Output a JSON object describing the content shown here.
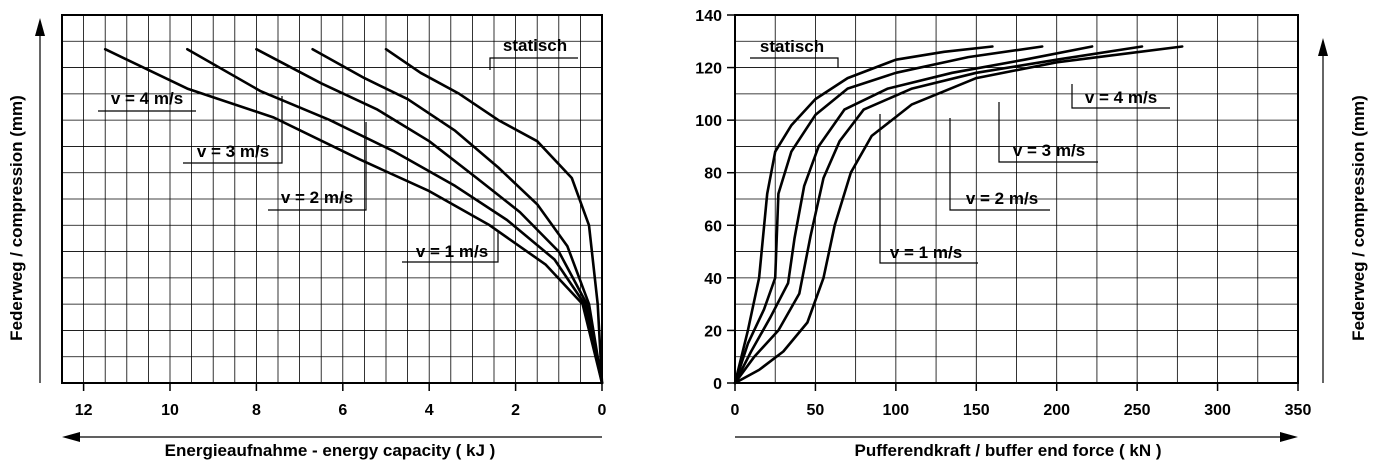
{
  "chart_data": [
    {
      "type": "line",
      "xlabel": "Energieaufnahme - energy capacity ( kJ )",
      "ylabel": "Federweg / compression (mm)",
      "xlim": [
        12.5,
        0
      ],
      "ylim": [
        0,
        140
      ],
      "x_ticks": [
        "12",
        "10",
        "8",
        "6",
        "4",
        "2",
        "0"
      ],
      "grid": true,
      "series": [
        {
          "name": "statisch",
          "points": [
            [
              0,
              0
            ],
            [
              0.1,
              30
            ],
            [
              0.3,
              60
            ],
            [
              0.7,
              78
            ],
            [
              1.5,
              92
            ],
            [
              2.4,
              100
            ],
            [
              3.3,
              110
            ],
            [
              4.2,
              118
            ],
            [
              5.0,
              127
            ]
          ]
        },
        {
          "name": "v = 1 m/s",
          "points": [
            [
              0,
              0
            ],
            [
              0.3,
              30
            ],
            [
              0.8,
              52
            ],
            [
              1.5,
              68
            ],
            [
              2.4,
              82
            ],
            [
              3.4,
              96
            ],
            [
              4.5,
              108
            ],
            [
              5.5,
              116
            ],
            [
              6.7,
              127
            ]
          ]
        },
        {
          "name": "v = 2 m/s",
          "points": [
            [
              0,
              0
            ],
            [
              0.35,
              30
            ],
            [
              1.0,
              50
            ],
            [
              1.9,
              65
            ],
            [
              2.9,
              78
            ],
            [
              4.0,
              92
            ],
            [
              5.2,
              104
            ],
            [
              6.5,
              114
            ],
            [
              8.0,
              127
            ]
          ]
        },
        {
          "name": "v = 3 m/s",
          "points": [
            [
              0,
              0
            ],
            [
              0.4,
              30
            ],
            [
              1.1,
              47
            ],
            [
              2.2,
              62
            ],
            [
              3.4,
              75
            ],
            [
              4.8,
              88
            ],
            [
              6.3,
              100
            ],
            [
              7.9,
              111
            ],
            [
              9.6,
              127
            ]
          ]
        },
        {
          "name": "v = 4 m/s",
          "points": [
            [
              0,
              0
            ],
            [
              0.45,
              30
            ],
            [
              1.3,
              45
            ],
            [
              2.6,
              60
            ],
            [
              4.0,
              73
            ],
            [
              5.6,
              85
            ],
            [
              7.6,
              101
            ],
            [
              9.6,
              112
            ],
            [
              11.5,
              127
            ]
          ]
        }
      ],
      "annotations": [
        "statisch",
        "v = 1 m/s",
        "v = 2 m/s",
        "v = 3 m/s",
        "v = 4 m/s"
      ]
    },
    {
      "type": "line",
      "xlabel": "Pufferendkraft / buffer end force ( kN )",
      "ylabel": "Federweg / compression (mm)",
      "xlim": [
        0,
        350
      ],
      "ylim": [
        0,
        140
      ],
      "x_ticks": [
        "0",
        "50",
        "100",
        "150",
        "200",
        "250",
        "300",
        "350"
      ],
      "y_ticks": [
        "0",
        "20",
        "40",
        "60",
        "80",
        "100",
        "120",
        "140"
      ],
      "grid": true,
      "series": [
        {
          "name": "statisch",
          "points": [
            [
              0,
              0
            ],
            [
              8,
              20
            ],
            [
              15,
              40
            ],
            [
              20,
              72
            ],
            [
              25,
              88
            ],
            [
              35,
              98
            ],
            [
              50,
              108
            ],
            [
              70,
              116
            ],
            [
              100,
              123
            ],
            [
              130,
              126
            ],
            [
              160,
              128
            ]
          ]
        },
        {
          "name": "v = 1 m/s",
          "points": [
            [
              0,
              0
            ],
            [
              15,
              5
            ],
            [
              30,
              12
            ],
            [
              45,
              23
            ],
            [
              55,
              40
            ],
            [
              62,
              60
            ],
            [
              72,
              80
            ],
            [
              85,
              94
            ],
            [
              110,
              106
            ],
            [
              150,
              116
            ],
            [
              200,
              122
            ],
            [
              278,
              128
            ]
          ]
        },
        {
          "name": "v = 2 m/s",
          "points": [
            [
              0,
              0
            ],
            [
              12,
              10
            ],
            [
              27,
              20
            ],
            [
              40,
              34
            ],
            [
              47,
              56
            ],
            [
              55,
              78
            ],
            [
              65,
              92
            ],
            [
              80,
              104
            ],
            [
              110,
              112
            ],
            [
              150,
              118
            ],
            [
              200,
              123
            ],
            [
              253,
              128
            ]
          ]
        },
        {
          "name": "v = 3 m/s",
          "points": [
            [
              0,
              0
            ],
            [
              10,
              12
            ],
            [
              22,
              25
            ],
            [
              33,
              38
            ],
            [
              37,
              55
            ],
            [
              43,
              75
            ],
            [
              52,
              90
            ],
            [
              68,
              104
            ],
            [
              95,
              112
            ],
            [
              135,
              118
            ],
            [
              180,
              123
            ],
            [
              222,
              128
            ]
          ]
        },
        {
          "name": "v = 4 m/s",
          "points": [
            [
              0,
              0
            ],
            [
              8,
              15
            ],
            [
              18,
              28
            ],
            [
              25,
              40
            ],
            [
              27,
              72
            ],
            [
              35,
              88
            ],
            [
              50,
              102
            ],
            [
              70,
              112
            ],
            [
              100,
              118
            ],
            [
              145,
              124
            ],
            [
              191,
              128
            ]
          ]
        }
      ],
      "annotations": [
        "statisch",
        "v = 1 m/s",
        "v = 2 m/s",
        "v = 3 m/s",
        "v = 4 m/s"
      ]
    }
  ]
}
